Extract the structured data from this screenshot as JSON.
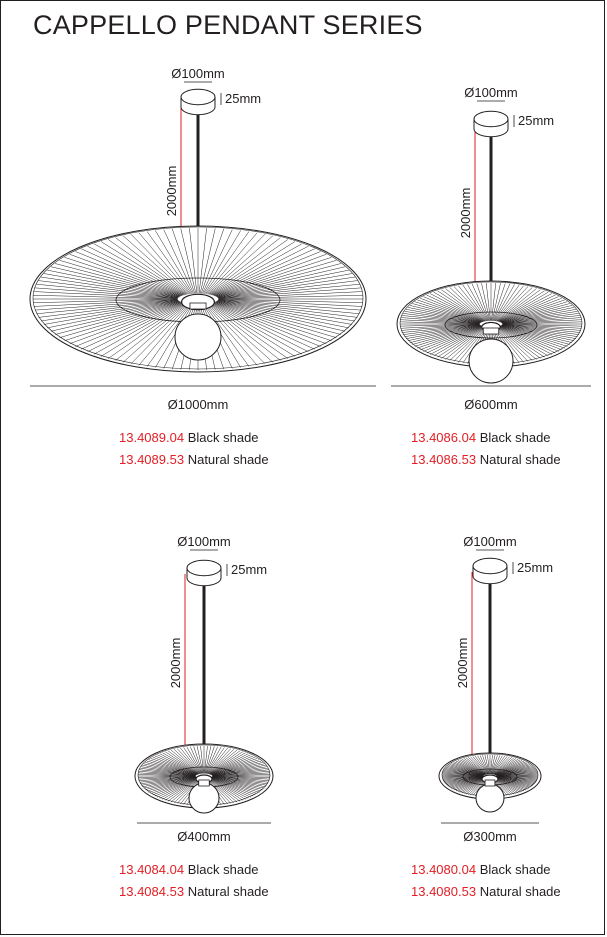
{
  "title": "CAPPELLO PENDANT SERIES",
  "colors": {
    "line": "#231f20",
    "dimension": "#e31e24",
    "code": "#e31e24",
    "text": "#231f20"
  },
  "pendants": [
    {
      "canopy_diameter": "Ø100mm",
      "canopy_height": "25mm",
      "cable_length": "2000mm",
      "shade_diameter": "Ø1000mm",
      "variants": [
        {
          "code": "13.4089.04",
          "finish": "Black shade"
        },
        {
          "code": "13.4089.53",
          "finish": "Natural shade"
        }
      ]
    },
    {
      "canopy_diameter": "Ø100mm",
      "canopy_height": "25mm",
      "cable_length": "2000mm",
      "shade_diameter": "Ø600mm",
      "variants": [
        {
          "code": "13.4086.04",
          "finish": "Black shade"
        },
        {
          "code": "13.4086.53",
          "finish": "Natural shade"
        }
      ]
    },
    {
      "canopy_diameter": "Ø100mm",
      "canopy_height": "25mm",
      "cable_length": "2000mm",
      "shade_diameter": "Ø400mm",
      "variants": [
        {
          "code": "13.4084.04",
          "finish": "Black shade"
        },
        {
          "code": "13.4084.53",
          "finish": "Natural shade"
        }
      ]
    },
    {
      "canopy_diameter": "Ø100mm",
      "canopy_height": "25mm",
      "cable_length": "2000mm",
      "shade_diameter": "Ø300mm",
      "variants": [
        {
          "code": "13.4080.04",
          "finish": "Black shade"
        },
        {
          "code": "13.4080.53",
          "finish": "Natural shade"
        }
      ]
    }
  ]
}
